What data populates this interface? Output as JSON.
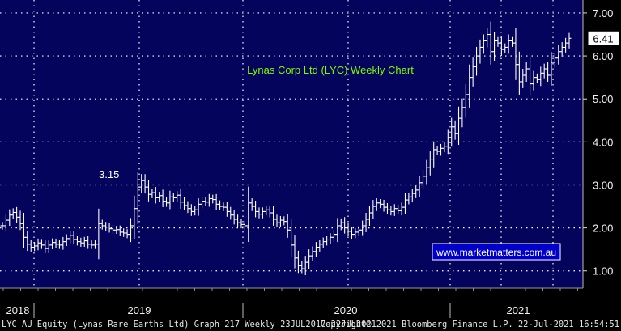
{
  "colors": {
    "plot_bg": "#04045c",
    "axis_panel_bg": "#000000",
    "bar_color": "#ffffff",
    "grid_color": "#ffffff",
    "title_color": "#7cfc00",
    "watermark_bg": "#0000c8",
    "last_price_bg": "#ffffff"
  },
  "chart_data": {
    "type": "bar",
    "title": "Lynas Corp Ltd (LYC) Weekly Chart",
    "ylim": [
      0.6,
      7.3
    ],
    "y_ticks": [
      "1.00",
      "2.00",
      "3.00",
      "4.00",
      "5.00",
      "6.00",
      "7.00"
    ],
    "x_labels": [
      "2018",
      "2019",
      "2020",
      "2021"
    ],
    "last_price_label": "6.41",
    "annotation": "3.15",
    "watermark": "www.marketmatters.com.au",
    "grid": true,
    "series": [
      {
        "values": [
          2.05,
          2.18,
          2.3,
          2.36,
          2.25,
          2.1,
          1.78,
          1.62,
          1.55,
          1.58,
          1.65,
          1.6,
          1.52,
          1.6,
          1.66,
          1.62,
          1.6,
          1.68,
          1.75,
          1.82,
          1.73,
          1.68,
          1.65,
          1.7,
          1.62,
          1.6,
          1.62,
          2.1,
          2.05,
          2.02,
          1.98,
          1.95,
          1.96,
          1.9,
          1.88,
          1.85,
          2.05,
          2.45,
          2.95,
          3.1,
          2.95,
          2.78,
          2.82,
          2.7,
          2.75,
          2.62,
          2.58,
          2.72,
          2.7,
          2.76,
          2.6,
          2.52,
          2.45,
          2.38,
          2.42,
          2.55,
          2.62,
          2.6,
          2.68,
          2.66,
          2.55,
          2.5,
          2.48,
          2.38,
          2.3,
          2.2,
          2.12,
          2.08,
          2.05,
          2.58,
          2.5,
          2.38,
          2.32,
          2.38,
          2.42,
          2.35,
          2.2,
          2.12,
          2.18,
          2.15,
          1.95,
          1.6,
          1.3,
          1.12,
          1.05,
          1.2,
          1.35,
          1.45,
          1.55,
          1.62,
          1.68,
          1.72,
          1.78,
          1.85,
          2.05,
          2.12,
          2.0,
          1.92,
          1.85,
          1.9,
          1.95,
          2.05,
          2.2,
          2.35,
          2.5,
          2.58,
          2.55,
          2.48,
          2.42,
          2.38,
          2.45,
          2.4,
          2.48,
          2.65,
          2.72,
          2.8,
          2.88,
          3.05,
          3.2,
          3.4,
          3.6,
          3.82,
          3.78,
          3.85,
          3.9,
          4.1,
          4.35,
          4.2,
          4.55,
          4.8,
          5.1,
          5.5,
          5.75,
          6.0,
          6.2,
          6.35,
          6.5,
          6.1,
          6.35,
          6.3,
          6.15,
          6.2,
          6.35,
          6.3,
          5.8,
          5.4,
          5.55,
          5.7,
          5.35,
          5.5,
          5.45,
          5.6,
          5.7,
          5.55,
          5.85,
          5.95,
          6.1,
          6.2,
          6.3,
          6.41
        ]
      }
    ]
  },
  "footer": {
    "left": "LYC AU Equity (Lynas Rare Earths Ltd) Graph 217  Weekly 23JUL2017-22JUL2021",
    "right": "Copyright© 2021 Bloomberg Finance L.P.   22-Jul-2021 16:54:51"
  }
}
